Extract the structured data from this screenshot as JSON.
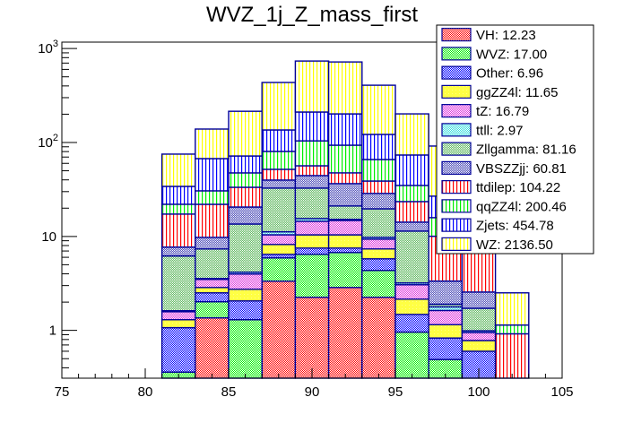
{
  "chart_data": {
    "type": "bar",
    "stacked": true,
    "title": "WVZ_1j_Z_mass_first",
    "xlabel": "",
    "ylabel": "",
    "xlim": [
      75,
      105
    ],
    "ylim": [
      0.31,
      1170
    ],
    "yscale": "log",
    "x_ticks": [
      "75",
      "80",
      "85",
      "90",
      "95",
      "100",
      "105"
    ],
    "y_ticks": [
      {
        "value": 1,
        "label": "1"
      },
      {
        "value": 10,
        "label": "10"
      },
      {
        "value": 100,
        "label": "10",
        "exp": "2"
      },
      {
        "value": 1000,
        "label": "10",
        "exp": "3"
      }
    ],
    "bin_edges": [
      81,
      83,
      85,
      87,
      89,
      91,
      93,
      95,
      97,
      99,
      101,
      103
    ],
    "legend_position": "top-right",
    "series": [
      {
        "name": "VH",
        "legend": "VH: 12.23",
        "color": "#ff0000",
        "pattern": "checker",
        "values": [
          0,
          1.36,
          0,
          3.34,
          2.25,
          2.86,
          2.25,
          0,
          0,
          0,
          0
        ]
      },
      {
        "name": "WVZ",
        "legend": "WVZ: 17.00",
        "color": "#00ee00",
        "pattern": "checker",
        "values": [
          0.36,
          0.66,
          1.3,
          2.57,
          4.2,
          3.88,
          2.1,
          0.96,
          0.49,
          0,
          0
        ]
      },
      {
        "name": "Other",
        "legend": "Other: 6.96",
        "color": "#0000ff",
        "pattern": "checker",
        "values": [
          0.71,
          0.49,
          0.76,
          0.54,
          1.07,
          0.78,
          1.43,
          0.52,
          0.34,
          0.6,
          0
        ]
      },
      {
        "name": "ggZZ4l",
        "legend": "ggZZ4l: 11.65",
        "color": "#ffff44",
        "pattern": "solid",
        "values": [
          0.23,
          0.35,
          0.68,
          1.76,
          2.88,
          2.88,
          1.58,
          0.67,
          0.32,
          0.18,
          0
        ]
      },
      {
        "name": "tZ",
        "legend": "tZ: 16.79",
        "color": "#dd33dd",
        "pattern": "checker",
        "values": [
          0.28,
          0.63,
          1.24,
          2.2,
          4.1,
          4.4,
          2.0,
          0.91,
          0.48,
          0.17,
          0
        ]
      },
      {
        "name": "ttll",
        "legend": "ttll: 2.97",
        "color": "#33dddd",
        "pattern": "checker",
        "values": [
          0.04,
          0.08,
          0.18,
          0.8,
          1.0,
          0.4,
          0.42,
          0.14,
          0.15,
          0.04,
          0
        ]
      },
      {
        "name": "Zllgamma",
        "legend": "Zllgamma: 81.16",
        "color": "#66bb66",
        "pattern": "checker-light",
        "values": [
          4.58,
          3.79,
          9.4,
          21.5,
          17.2,
          5.9,
          9.9,
          8.2,
          0.12,
          0.73,
          0
        ]
      },
      {
        "name": "VBSZZjj",
        "legend": "VBSZZjj: 60.81",
        "color": "#5555bb",
        "pattern": "checker-light",
        "values": [
          1.5,
          2.42,
          7.0,
          7.1,
          11.7,
          15.4,
          9.0,
          2.8,
          1.45,
          0.84,
          0
        ]
      },
      {
        "name": "ttdilep",
        "legend": "ttdilep: 104.22",
        "color": "#ff0000",
        "pattern": "vstripe",
        "values": [
          9.6,
          12.2,
          12.8,
          12.0,
          12.1,
          11.0,
          10.2,
          9.3,
          6.7,
          5.3,
          0.92
        ]
      },
      {
        "name": "qqZZ4l",
        "legend": "qqZZ4l: 200.46",
        "color": "#00ee00",
        "pattern": "vstripe",
        "values": [
          4.7,
          8.6,
          14.1,
          28.5,
          47.5,
          46.1,
          27.0,
          11.4,
          5.8,
          1.5,
          0.22
        ]
      },
      {
        "name": "Zjets",
        "legend": "Zjets: 454.78",
        "color": "#0000ff",
        "pattern": "vstripe",
        "values": [
          12.1,
          36.8,
          24.4,
          55.7,
          107,
          108,
          56.0,
          38.7,
          11.0,
          3.0,
          0
        ]
      },
      {
        "name": "WZ",
        "legend": "WZ: 2136.50",
        "color": "#ffff00",
        "pattern": "vstripe",
        "values": [
          41.1,
          71.6,
          143,
          299,
          525,
          518,
          285,
          128,
          64.8,
          20.0,
          1.37
        ]
      }
    ]
  }
}
